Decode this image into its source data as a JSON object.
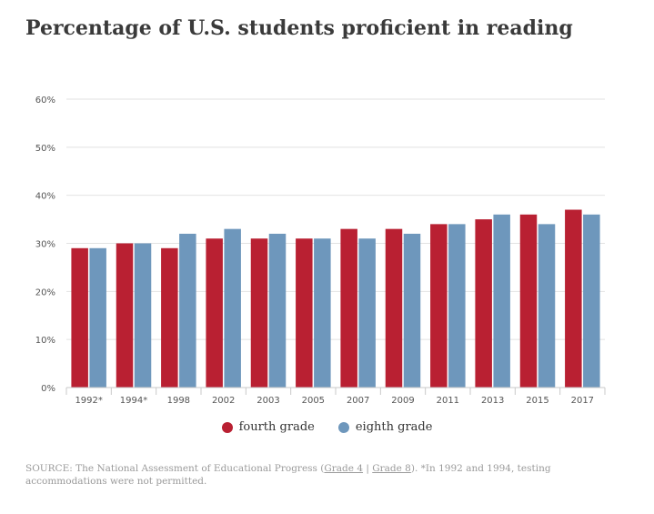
{
  "title": "Percentage of U.S. students proficient in reading",
  "colors": {
    "fourth": "#b92032",
    "eighth": "#6e97bc",
    "grid": "#e2e2e2",
    "axis": "#c9c9c9"
  },
  "legend": {
    "fourth_label": "fourth grade",
    "eighth_label": "eighth grade"
  },
  "source": {
    "prefix": "SOURCE: The National Assessment of Educational Progress (",
    "grade4_link": "Grade 4",
    "separator": " | ",
    "grade8_link": "Grade 8",
    "suffix": "). *In 1992 and 1994, testing accommodations were not permitted."
  },
  "chart_data": {
    "type": "bar",
    "title": "Percentage of U.S. students proficient in reading",
    "xlabel": "",
    "ylabel": "",
    "categories": [
      "1992*",
      "1994*",
      "1998",
      "2002",
      "2003",
      "2005",
      "2007",
      "2009",
      "2011",
      "2013",
      "2015",
      "2017"
    ],
    "series": [
      {
        "name": "fourth grade",
        "values": [
          29,
          30,
          29,
          31,
          31,
          31,
          33,
          33,
          34,
          35,
          36,
          37
        ]
      },
      {
        "name": "eighth grade",
        "values": [
          29,
          30,
          32,
          33,
          32,
          31,
          31,
          32,
          34,
          36,
          34,
          36
        ]
      }
    ],
    "ylim": [
      0,
      60
    ],
    "yticks": [
      "0%",
      "10%",
      "20%",
      "30%",
      "40%",
      "50%",
      "60%"
    ],
    "grid": true,
    "legend_position": "bottom-center"
  }
}
